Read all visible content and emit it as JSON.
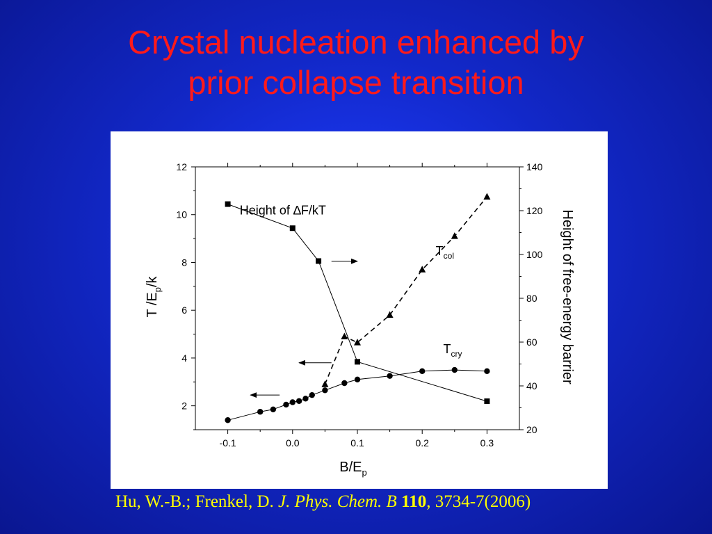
{
  "slide": {
    "title_line1": "Crystal nucleation enhanced by",
    "title_line2": "prior collapse transition",
    "title_color": "#ff1a1a",
    "background_color": "#1228c8"
  },
  "citation": {
    "authors": "Hu, W.-B.; Frenkel, D. ",
    "journal": "J. Phys. Chem. B",
    "volume": "110",
    "pages": ", 3734-7(2006)",
    "color": "#ffff00"
  },
  "chart_data": {
    "type": "line",
    "xlabel": "B/E",
    "xlabel_sub": "p",
    "ylabel_left": "T /E",
    "ylabel_left_sub": "p",
    "ylabel_left_suffix": "/k",
    "ylabel_right": "Height of free-energy barrier",
    "xlim": [
      -0.15,
      0.35
    ],
    "ylim_left": [
      1,
      12
    ],
    "ylim_right": [
      20,
      140
    ],
    "x_ticks": [
      -0.1,
      0.0,
      0.1,
      0.2,
      0.3
    ],
    "x_tick_labels": [
      "-0.1",
      "0.0",
      "0.1",
      "0.2",
      "0.3"
    ],
    "y_left_ticks": [
      2,
      4,
      6,
      8,
      10,
      12
    ],
    "y_left_tick_labels": [
      "2",
      "4",
      "6",
      "8",
      "10",
      "12"
    ],
    "y_right_ticks": [
      20,
      40,
      60,
      80,
      100,
      120,
      140
    ],
    "y_right_tick_labels": [
      "20",
      "40",
      "60",
      "80",
      "100",
      "120",
      "140"
    ],
    "grid": false,
    "series": [
      {
        "axis": "right",
        "marker": "square",
        "line_style": "solid",
        "x": [
          -0.1,
          0.0,
          0.04,
          0.1,
          0.3
        ],
        "y": [
          123,
          112,
          97,
          51,
          33
        ]
      },
      {
        "axis": "left",
        "marker": "triangle",
        "line_style": "dashed",
        "x": [
          0.05,
          0.08,
          0.1,
          0.15,
          0.2,
          0.25,
          0.3
        ],
        "y": [
          2.9,
          4.9,
          4.65,
          5.8,
          7.7,
          9.1,
          10.75
        ]
      },
      {
        "axis": "left",
        "marker": "circle",
        "line_style": "solid",
        "x": [
          -0.1,
          -0.05,
          -0.03,
          -0.01,
          0.0,
          0.01,
          0.02,
          0.03,
          0.05,
          0.08,
          0.1,
          0.15,
          0.2,
          0.25,
          0.3
        ],
        "y": [
          1.4,
          1.75,
          1.85,
          2.05,
          2.15,
          2.2,
          2.3,
          2.45,
          2.65,
          2.95,
          3.1,
          3.25,
          3.45,
          3.5,
          3.45
        ]
      }
    ],
    "annotations": [
      {
        "id": "height",
        "text": "Height of ∆F/kT"
      },
      {
        "id": "tcol",
        "text": "T",
        "sub": "col"
      },
      {
        "id": "tcry",
        "text": "T",
        "sub": "cry"
      }
    ],
    "arrows": [
      {
        "id": "arrow-right",
        "direction": "right",
        "x": [
          0.06,
          0.1
        ],
        "y_left": 8.05
      },
      {
        "id": "arrow-left-1",
        "direction": "left",
        "x": [
          0.06,
          0.01
        ],
        "y_left": 3.8
      },
      {
        "id": "arrow-left-2",
        "direction": "left",
        "x": [
          -0.02,
          -0.065
        ],
        "y_left": 2.45
      }
    ]
  }
}
